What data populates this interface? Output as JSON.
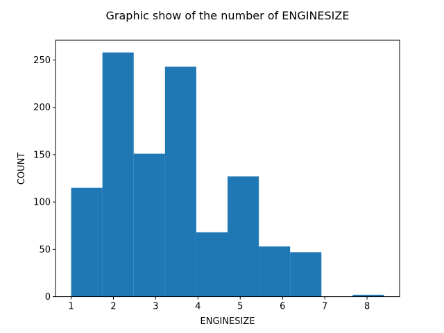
{
  "chart_data": {
    "type": "bar",
    "title": "Graphic show of the number of ENGINESIZE",
    "xlabel": "ENGINESIZE",
    "ylabel": "COUNT",
    "bins": [
      {
        "x0": 1.0,
        "x1": 1.74,
        "count": 115
      },
      {
        "x0": 1.74,
        "x1": 2.48,
        "count": 258
      },
      {
        "x0": 2.48,
        "x1": 3.22,
        "count": 151
      },
      {
        "x0": 3.22,
        "x1": 3.96,
        "count": 243
      },
      {
        "x0": 3.96,
        "x1": 4.7,
        "count": 68
      },
      {
        "x0": 4.7,
        "x1": 5.44,
        "count": 127
      },
      {
        "x0": 5.44,
        "x1": 6.18,
        "count": 53
      },
      {
        "x0": 6.18,
        "x1": 6.92,
        "count": 47
      },
      {
        "x0": 6.92,
        "x1": 7.66,
        "count": 0
      },
      {
        "x0": 7.66,
        "x1": 8.4,
        "count": 2
      }
    ],
    "xlim": [
      0.63,
      8.77
    ],
    "ylim": [
      0,
      270.9
    ],
    "xticks": [
      1,
      2,
      3,
      4,
      5,
      6,
      7,
      8
    ],
    "yticks": [
      0,
      50,
      100,
      150,
      200,
      250
    ],
    "bar_color": "#1f77b4",
    "grid": false
  }
}
